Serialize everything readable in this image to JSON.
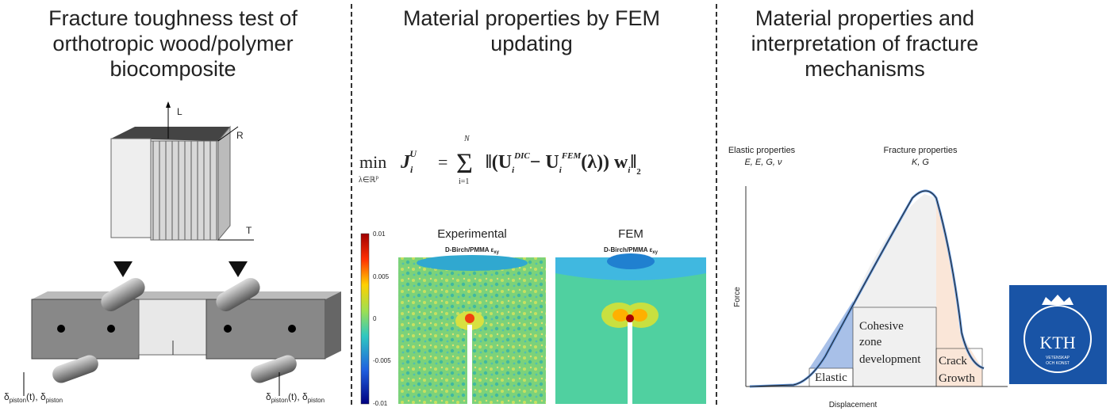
{
  "panels": [
    {
      "title": [
        "Fracture toughness test of",
        "orthotropic wood/polymer",
        "biocomposite"
      ],
      "axes": [
        "L",
        "R",
        "T"
      ],
      "left_label": [
        "δ",
        "piston",
        "(t), δ",
        "piston"
      ],
      "right_label": [
        "δ",
        "piston",
        "(t), δ",
        "piston"
      ]
    },
    {
      "title": [
        "Material properties by FEM",
        "updating"
      ],
      "formula": [
        "min",
        "λ∈ℝ",
        "p",
        "J",
        "i",
        "U",
        "=",
        "Σ",
        "i=1",
        "N",
        "‖(U",
        "i",
        "DIC",
        "− U",
        "i",
        "FEM",
        "(λ)) w",
        "i",
        "‖",
        "2"
      ],
      "colorbar_ticks": [
        "0.01",
        "0.005",
        "0",
        "-0.005",
        "-0.01"
      ],
      "images": [
        {
          "title": "Experimental",
          "subtitle": "D-Birch/PMMA ε",
          "sub": "xy"
        },
        {
          "title": "FEM",
          "subtitle": "D-Birch/PMMA ε",
          "sub": "xy"
        }
      ]
    },
    {
      "title": [
        "Material properties and",
        "interpretation of fracture",
        "mechanisms"
      ],
      "elastic": {
        "title": "Elastic properties",
        "symbols": "E, E, G, ν"
      },
      "fracture": {
        "title": "Fracture properties",
        "symbols": "K, G"
      },
      "y_label": "Force",
      "x_label": "Displacement",
      "regions": [
        "Elastic",
        [
          "Cohesive",
          "zone",
          "development"
        ],
        [
          "Crack",
          "Growth"
        ]
      ],
      "logo": {
        "name": "KTH",
        "motto": [
          "VETENSKAP",
          "OCH KONST"
        ]
      }
    }
  ]
}
